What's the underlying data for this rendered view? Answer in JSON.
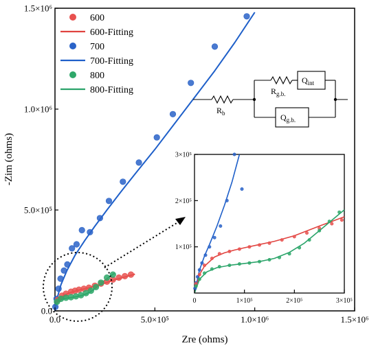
{
  "chart_data": {
    "type": "scatter",
    "xlabel": "Zre (ohms)",
    "ylabel": "-Zim (ohms)",
    "xlim": [
      0,
      1500000
    ],
    "ylim": [
      0,
      1500000
    ],
    "x_ticks": [
      0,
      500000,
      1000000,
      1500000
    ],
    "y_ticks": [
      0,
      500000,
      1000000,
      1500000
    ],
    "x_tick_labels": [
      "0.0",
      "5.0×10⁵",
      "1.0×10⁶",
      "1.5×10⁶"
    ],
    "y_tick_labels": [
      "0.0",
      "5.0×10⁵",
      "1.0×10⁶",
      "1.5×10⁶"
    ],
    "legend_position": "top-left",
    "legend": [
      "600",
      "600-Fitting",
      "700",
      "700-Fitting",
      "800",
      "800-Fitting"
    ],
    "colors": {
      "600": "#e8514f",
      "600-Fitting": "#e0433f",
      "700": "#2a63c8",
      "700-Fitting": "#1e5fc9",
      "800": "#2fa86a",
      "800-Fitting": "#2aa36a"
    },
    "series": [
      {
        "name": "700",
        "kind": "points",
        "color": "#2a63c8",
        "x": [
          2000,
          8000,
          18000,
          28000,
          45000,
          62000,
          85000,
          108000,
          135000,
          175000,
          225000,
          270000,
          340000,
          420000,
          510000,
          590000,
          680000,
          800000,
          960000
        ],
        "y": [
          20000,
          60000,
          110000,
          160000,
          200000,
          230000,
          310000,
          330000,
          400000,
          390000,
          460000,
          545000,
          640000,
          735000,
          860000,
          975000,
          1130000,
          1310000,
          1460000
        ]
      },
      {
        "name": "700-Fitting",
        "kind": "line",
        "color": "#1e5fc9",
        "x": [
          0,
          10000,
          30000,
          60000,
          100000,
          150000,
          200000,
          260000,
          330000,
          410000,
          500000,
          600000,
          700000,
          800000,
          900000,
          1000000
        ],
        "y": [
          0,
          60000,
          130000,
          200000,
          275000,
          350000,
          420000,
          500000,
          590000,
          690000,
          800000,
          930000,
          1060000,
          1190000,
          1330000,
          1480000
        ]
      },
      {
        "name": "600",
        "kind": "points",
        "color": "#e8514f",
        "x": [
          15000,
          35000,
          55000,
          80000,
          100000,
          120000,
          145000,
          170000,
          200000,
          230000,
          260000,
          290000,
          320000,
          350000,
          380000
        ],
        "y": [
          55000,
          75000,
          85000,
          95000,
          100000,
          105000,
          110000,
          115000,
          125000,
          135000,
          145000,
          155000,
          165000,
          172000,
          180000
        ]
      },
      {
        "name": "600-Fitting",
        "kind": "line",
        "color": "#e0433f",
        "x": [
          0,
          20000,
          50000,
          80000,
          120000,
          160000,
          200000,
          250000,
          300000,
          350000,
          400000
        ],
        "y": [
          20000,
          60000,
          80000,
          92000,
          103000,
          112000,
          122000,
          138000,
          154000,
          168000,
          182000
        ]
      },
      {
        "name": "800",
        "kind": "points",
        "color": "#2fa86a",
        "x": [
          10000,
          30000,
          55000,
          80000,
          105000,
          130000,
          155000,
          180000,
          205000,
          230000,
          260000,
          290000
        ],
        "y": [
          45000,
          60000,
          65000,
          68000,
          72000,
          78000,
          88000,
          100000,
          118000,
          140000,
          165000,
          180000
        ]
      },
      {
        "name": "800-Fitting",
        "kind": "line",
        "color": "#2aa36a",
        "x": [
          0,
          20000,
          50000,
          80000,
          110000,
          140000,
          170000,
          200000,
          230000,
          260000,
          290000,
          300000
        ],
        "y": [
          20000,
          52000,
          62000,
          66000,
          71000,
          78000,
          90000,
          110000,
          135000,
          160000,
          182000,
          186000
        ]
      }
    ],
    "inset": {
      "xlim": [
        0,
        300000
      ],
      "ylim": [
        0,
        300000
      ],
      "x_ticks": [
        0,
        100000,
        200000,
        300000
      ],
      "y_ticks": [
        100000,
        200000,
        300000
      ],
      "x_tick_labels": [
        "0",
        "1×10⁵",
        "2×10⁵",
        "3×10⁵"
      ],
      "y_tick_labels": [
        "1×10⁵",
        "2×10⁵",
        "3×10⁵"
      ],
      "series": [
        {
          "name": "700",
          "kind": "points",
          "color": "#2a63c8",
          "x": [
            1000,
            3000,
            6000,
            10000,
            15000,
            22000,
            30000,
            40000,
            52000,
            65000,
            80000,
            95000
          ],
          "y": [
            10000,
            22000,
            35000,
            50000,
            65000,
            82000,
            100000,
            120000,
            145000,
            200000,
            300000,
            225000
          ]
        },
        {
          "name": "700-Fitting",
          "kind": "line",
          "color": "#1e5fc9",
          "x": [
            0,
            10000,
            20000,
            30000,
            45000,
            60000,
            75000,
            90000
          ],
          "y": [
            0,
            50000,
            80000,
            105000,
            145000,
            190000,
            240000,
            300000
          ]
        },
        {
          "name": "600",
          "kind": "points",
          "color": "#e8514f",
          "x": [
            3000,
            10000,
            20000,
            35000,
            50000,
            70000,
            90000,
            110000,
            130000,
            150000,
            175000,
            200000,
            225000,
            250000,
            275000,
            295000
          ],
          "y": [
            20000,
            40000,
            60000,
            75000,
            85000,
            90000,
            95000,
            100000,
            104000,
            108000,
            115000,
            122000,
            130000,
            140000,
            150000,
            158000
          ]
        },
        {
          "name": "600-Fitting",
          "kind": "line",
          "color": "#e0433f",
          "x": [
            0,
            10000,
            20000,
            40000,
            60000,
            80000,
            100000,
            130000,
            160000,
            200000,
            250000,
            300000
          ],
          "y": [
            0,
            40000,
            58000,
            78000,
            87000,
            93000,
            98000,
            105000,
            112000,
            124000,
            145000,
            165000
          ]
        },
        {
          "name": "800",
          "kind": "points",
          "color": "#2fa86a",
          "x": [
            3000,
            10000,
            20000,
            35000,
            50000,
            70000,
            90000,
            110000,
            130000,
            150000,
            170000,
            190000,
            210000,
            230000,
            250000,
            270000,
            290000
          ],
          "y": [
            15000,
            30000,
            43000,
            52000,
            57000,
            60000,
            63000,
            65000,
            68000,
            72000,
            77000,
            85000,
            98000,
            115000,
            135000,
            155000,
            175000
          ]
        },
        {
          "name": "800-Fitting",
          "kind": "line",
          "color": "#2aa36a",
          "x": [
            0,
            10000,
            25000,
            45000,
            70000,
            100000,
            130000,
            160000,
            190000,
            220000,
            250000,
            280000,
            300000
          ],
          "y": [
            0,
            30000,
            46000,
            55000,
            60000,
            64000,
            68000,
            75000,
            88000,
            108000,
            135000,
            162000,
            180000
          ]
        }
      ]
    },
    "circuit": {
      "labels": [
        "R",
        "b",
        "R",
        "g.b.",
        "Q",
        "int",
        "Q",
        "g.b."
      ]
    }
  }
}
